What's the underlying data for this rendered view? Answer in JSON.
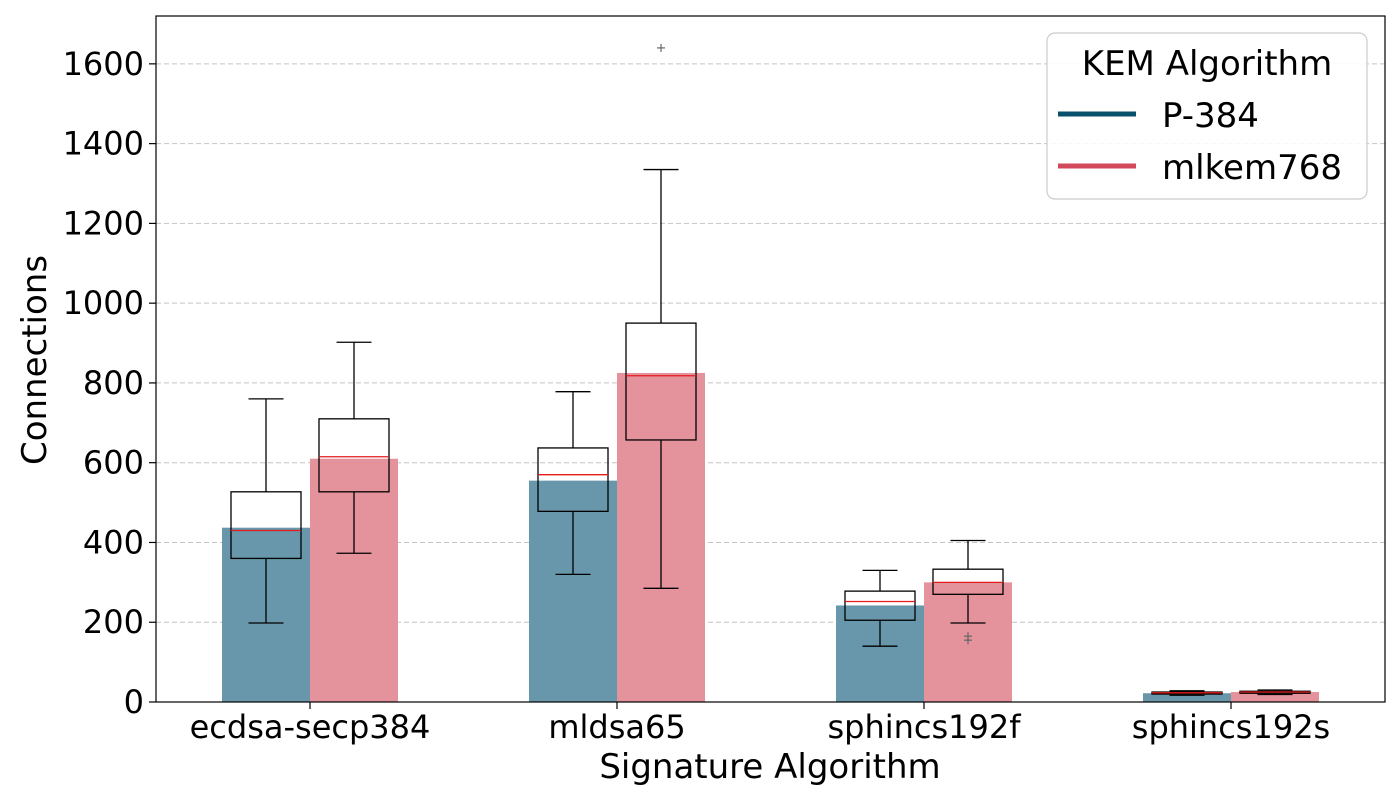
{
  "chart_data": {
    "type": "bar",
    "title": "",
    "xlabel": "Signature Algorithm",
    "ylabel": "Connections",
    "ylim": [
      0,
      1720
    ],
    "yticks": [
      0,
      200,
      400,
      600,
      800,
      1000,
      1200,
      1400,
      1600
    ],
    "grid": "horizontal dashed",
    "legend_title": "KEM Algorithm",
    "legend_position": "top-right",
    "categories": [
      "ecdsa-secp384",
      "mldsa65",
      "sphincs192f",
      "sphincs192s"
    ],
    "series": [
      {
        "name": "P-384",
        "color": "#08506b",
        "bar_color": "#6896aa",
        "values": [
          437,
          555,
          242,
          22
        ],
        "boxes": [
          {
            "whisker_low": 198,
            "q1": 360,
            "median": 430,
            "q3": 527,
            "whisker_high": 760,
            "outliers": []
          },
          {
            "whisker_low": 320,
            "q1": 478,
            "median": 570,
            "q3": 637,
            "whisker_high": 778,
            "outliers": []
          },
          {
            "whisker_low": 140,
            "q1": 205,
            "median": 252,
            "q3": 278,
            "whisker_high": 330,
            "outliers": []
          },
          {
            "whisker_low": 17,
            "q1": 20,
            "median": 23,
            "q3": 25,
            "whisker_high": 28,
            "outliers": []
          }
        ]
      },
      {
        "name": "mlkem768",
        "color": "#d1495b",
        "bar_color": "#e4929b",
        "values": [
          610,
          825,
          300,
          25
        ],
        "boxes": [
          {
            "whisker_low": 373,
            "q1": 527,
            "median": 615,
            "q3": 710,
            "whisker_high": 902,
            "outliers": []
          },
          {
            "whisker_low": 285,
            "q1": 657,
            "median": 818,
            "q3": 950,
            "whisker_high": 1335,
            "outliers": [
              1640
            ]
          },
          {
            "whisker_low": 198,
            "q1": 270,
            "median": 300,
            "q3": 333,
            "whisker_high": 405,
            "outliers": [
              155,
              165
            ]
          },
          {
            "whisker_low": 19,
            "q1": 22,
            "median": 25,
            "q3": 27,
            "whisker_high": 30,
            "outliers": []
          }
        ]
      }
    ]
  }
}
